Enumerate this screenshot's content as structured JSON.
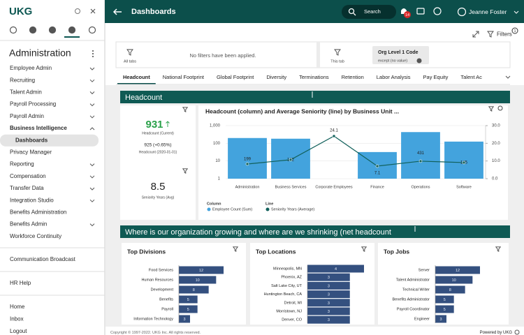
{
  "sidebar": {
    "logo": "UKG",
    "section_title": "Administration",
    "menu": [
      {
        "label": "Employee Admin",
        "chevron": "down"
      },
      {
        "label": "Recruiting",
        "chevron": "down"
      },
      {
        "label": "Talent Admin",
        "chevron": "down"
      },
      {
        "label": "Payroll Processing",
        "chevron": "down"
      },
      {
        "label": "Payroll Admin",
        "chevron": "down"
      },
      {
        "label": "Business Intelligence",
        "chevron": "up",
        "bold": true
      },
      {
        "label": "Dashboards",
        "sub": true,
        "selected": true
      },
      {
        "label": "Privacy Manager"
      },
      {
        "label": "Reporting",
        "chevron": "down"
      },
      {
        "label": "Compensation",
        "chevron": "down"
      },
      {
        "label": "Transfer Data",
        "chevron": "down"
      },
      {
        "label": "Integration Studio",
        "chevron": "down"
      },
      {
        "label": "Benefits Administration"
      },
      {
        "label": "Benefits Admin",
        "chevron": "down"
      },
      {
        "label": "Workforce Continuity"
      }
    ],
    "broadcast": "Communication Broadcast",
    "help": "HR Help",
    "bottom": [
      "Home",
      "Inbox",
      "Logout"
    ]
  },
  "header": {
    "title": "Dashboards",
    "search": "Search",
    "notifications": 14,
    "user": "Jeanne Foster",
    "filters": "Filters",
    "filter_count": 1
  },
  "filter_bar": {
    "all_tabs": "All tabs",
    "no_filters": "No filters have been applied.",
    "this_tab": "This tab",
    "chip_title": "Org Level 1 Code",
    "chip_value": "except (no value)"
  },
  "tabs": {
    "items": [
      "Headcount",
      "National Footprint",
      "Global Footprint",
      "Diversity",
      "Terminations",
      "Retention",
      "Labor Analysis",
      "Pay Equity",
      "Talent Ac"
    ],
    "selected": 0
  },
  "sections": [
    "Headcount",
    "Where is our organization growing and where are we shrinking (net headcount"
  ],
  "kpis": {
    "current": "931",
    "current_label": "Headcount (Current)",
    "previous": "925 (+0.65%)",
    "previous_label": "Headcount (2020-01-01)",
    "seniority": "8.5",
    "seniority_label": "Seniority Years (Avg)"
  },
  "chart_data": [
    {
      "type": "bar_line",
      "title": "Headcount (column) and Average Seniority (line) by Business Unit ...",
      "categories": [
        "Administration",
        "Business Services",
        "Corporate Employees",
        "Finance",
        "Operations",
        "Software"
      ],
      "series": [
        {
          "name": "Employee Count (Sum)",
          "legend_group": "Column",
          "color": "#43a3dd",
          "values": [
            199,
            182,
            null,
            32,
            431,
            125
          ],
          "value_labels": [
            "199",
            "182",
            null,
            null,
            "431",
            "125"
          ]
        },
        {
          "name": "Seniority Years (Average)",
          "legend_group": "Line",
          "color": "#12615b",
          "axis": "y2",
          "values": [
            8.3,
            10.7,
            24.1,
            7.1,
            9.9,
            9.1
          ],
          "value_labels": [
            null,
            null,
            "24.1",
            "7.1",
            null,
            null
          ]
        }
      ],
      "ylim": [
        1,
        1000
      ],
      "log_y": true,
      "yticks": [
        {
          "value": 1000,
          "label": "1,000"
        },
        100,
        10,
        1
      ],
      "y2lim": [
        0,
        30
      ],
      "y2ticks": [
        {
          "value": 30,
          "label": "30.0"
        },
        {
          "value": 20,
          "label": "20.0"
        },
        {
          "value": 10,
          "label": "10.0"
        },
        {
          "value": 0,
          "label": "0.0"
        }
      ]
    },
    {
      "type": "barh",
      "title": "Top Divisions",
      "color": "#34507f",
      "categories": [
        "Food Services",
        "Human Resources",
        "Development",
        "Benefits",
        "Payroll",
        "Information Technology"
      ],
      "values": [
        12,
        10,
        8,
        5,
        5,
        3
      ]
    },
    {
      "type": "barh",
      "title": "Top Locations",
      "color": "#34507f",
      "categories": [
        "Minneapolis, MN",
        "Phoenix, AZ",
        "Salt Lake City, UT",
        "Huntington Beach, CA",
        "Detroit, MI",
        "Morristown, NJ",
        "Denver, CO"
      ],
      "values": [
        4,
        3,
        3,
        3,
        3,
        3,
        3
      ]
    },
    {
      "type": "barh",
      "title": "Top Jobs",
      "color": "#34507f",
      "categories": [
        "Server",
        "Talent Administrator",
        "Technical Writer",
        "Benefits Administrator",
        "Payroll Coordinator",
        "Engineer"
      ],
      "values": [
        12,
        10,
        8,
        5,
        5,
        3
      ]
    }
  ],
  "footer": {
    "copyright": "Copyright © 1997-2022. UKG Inc. All rights reserved.",
    "powered": "Powered by UKG"
  }
}
